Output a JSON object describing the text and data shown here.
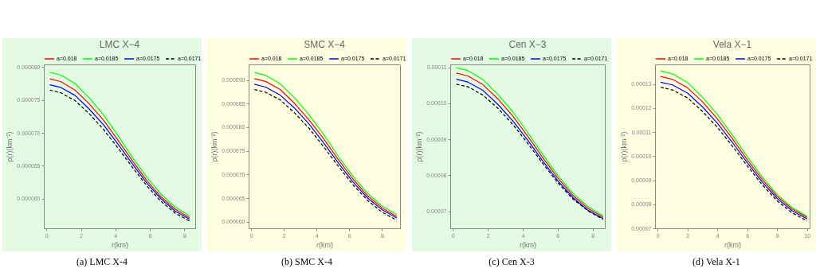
{
  "chart_data": [
    {
      "type": "line",
      "title": "LMC X−4",
      "xlabel": "r(km)",
      "ylabel": "ρ(r)(km⁻²)",
      "annotations": [
        "(a) LMC X-4"
      ],
      "legend": "top",
      "x": [
        0.2,
        0.83,
        1.66,
        2.49,
        3.32,
        4.15,
        4.98,
        5.81,
        6.64,
        7.47,
        8.3
      ],
      "xlim": [
        -0.15,
        8.63
      ],
      "xticks": [
        0,
        2,
        4,
        6,
        8
      ],
      "ylim": [
        5.55e-05,
        8.04e-05
      ],
      "yticks": [
        {
          "value": 6e-05,
          "label": "0.000060"
        },
        {
          "value": 6.5e-05,
          "label": "0.000065"
        },
        {
          "value": 7e-05,
          "label": "0.000070"
        },
        {
          "value": 7.5e-05,
          "label": "0.000075"
        },
        {
          "value": 8e-05,
          "label": "0.000080"
        }
      ],
      "series": [
        {
          "name": "a=0.018",
          "color": "#ff0000",
          "values": [
            7.82e-05,
            7.78e-05,
            7.65e-05,
            7.44e-05,
            7.19e-05,
            6.89e-05,
            6.58e-05,
            6.28e-05,
            6.03e-05,
            5.84e-05,
            5.71e-05
          ]
        },
        {
          "name": "a=0.0185",
          "color": "#00ff00",
          "values": [
            7.92e-05,
            7.88e-05,
            7.75e-05,
            7.53e-05,
            7.27e-05,
            6.96e-05,
            6.63e-05,
            6.33e-05,
            6.07e-05,
            5.87e-05,
            5.74e-05
          ]
        },
        {
          "name": "a=0.0175",
          "color": "#0000ff",
          "values": [
            7.73e-05,
            7.69e-05,
            7.57e-05,
            7.36e-05,
            7.12e-05,
            6.83e-05,
            6.53e-05,
            6.24e-05,
            6e-05,
            5.81e-05,
            5.69e-05
          ]
        },
        {
          "name": "a=0.0171",
          "color": "#000000",
          "line_style": "dashed",
          "values": [
            7.65e-05,
            7.61e-05,
            7.49e-05,
            7.29e-05,
            7.05e-05,
            6.77e-05,
            6.48e-05,
            6.2e-05,
            5.96e-05,
            5.78e-05,
            5.66e-05
          ]
        }
      ]
    },
    {
      "type": "line",
      "title": "SMC X−4",
      "xlabel": "r(km)",
      "ylabel": "ρ(r)(km⁻²)",
      "annotations": [
        "(b) SMC X-4"
      ],
      "legend": "top",
      "x": [
        0.2,
        0.89,
        1.78,
        2.67,
        3.56,
        4.45,
        5.34,
        6.23,
        7.12,
        8.01,
        8.9
      ],
      "xlim": [
        -0.15,
        9.1
      ],
      "xticks": [
        0,
        2,
        4,
        6,
        8
      ],
      "ylim": [
        5.86e-05,
        9.33e-05
      ],
      "yticks": [
        {
          "value": 6e-05,
          "label": "0.000060"
        },
        {
          "value": 6.5e-05,
          "label": "0.000065"
        },
        {
          "value": 7e-05,
          "label": "0.000070"
        },
        {
          "value": 7.5e-05,
          "label": "0.000075"
        },
        {
          "value": 8e-05,
          "label": "0.000080"
        },
        {
          "value": 8.5e-05,
          "label": "0.000085"
        },
        {
          "value": 9e-05,
          "label": "0.000090"
        }
      ],
      "series": [
        {
          "name": "a=0.018",
          "color": "#ff0000",
          "values": [
            9.03e-05,
            8.97e-05,
            8.8e-05,
            8.5e-05,
            8.15e-05,
            7.75e-05,
            7.31e-05,
            6.9e-05,
            6.55e-05,
            6.29e-05,
            6.11e-05
          ]
        },
        {
          "name": "a=0.0185",
          "color": "#00ff00",
          "values": [
            9.16e-05,
            9.1e-05,
            8.92e-05,
            8.62e-05,
            8.26e-05,
            7.84e-05,
            7.38e-05,
            6.96e-05,
            6.6e-05,
            6.33e-05,
            6.15e-05
          ]
        },
        {
          "name": "a=0.0175",
          "color": "#0000ff",
          "values": [
            8.91e-05,
            8.85e-05,
            8.68e-05,
            8.4e-05,
            8.06e-05,
            7.66e-05,
            7.24e-05,
            6.84e-05,
            6.5e-05,
            6.25e-05,
            6.08e-05
          ]
        },
        {
          "name": "a=0.0171",
          "color": "#000000",
          "line_style": "dashed",
          "values": [
            8.8e-05,
            8.74e-05,
            8.58e-05,
            8.3e-05,
            7.97e-05,
            7.58e-05,
            7.17e-05,
            6.78e-05,
            6.45e-05,
            6.2e-05,
            6.03e-05
          ]
        }
      ]
    },
    {
      "type": "line",
      "title": "Cen X−3",
      "xlabel": "r(km)",
      "ylabel": "ρ(r)(km⁻²)",
      "annotations": [
        "(c) Cen X-3"
      ],
      "legend": "top",
      "x": [
        0.2,
        0.86,
        1.72,
        2.58,
        3.44,
        4.3,
        5.16,
        6.02,
        6.88,
        7.74,
        8.6
      ],
      "xlim": [
        -0.15,
        8.7
      ],
      "xticks": [
        0,
        2,
        4,
        6,
        8
      ],
      "ylim": [
        6.53e-05,
        0.0001108
      ],
      "yticks": [
        {
          "value": 7e-05,
          "label": "0.00007"
        },
        {
          "value": 8e-05,
          "label": "0.00008"
        },
        {
          "value": 9e-05,
          "label": "0.00009"
        },
        {
          "value": 0.0001,
          "label": "0.00010"
        },
        {
          "value": 0.00011,
          "label": "0.00011"
        }
      ],
      "series": [
        {
          "name": "a=0.018",
          "color": "#ff0000",
          "values": [
            0.0001084,
            0.0001076,
            0.0001052,
            0.0001012,
            9.64e-05,
            9.08e-05,
            8.48e-05,
            7.92e-05,
            7.44e-05,
            7.08e-05,
            6.84e-05
          ]
        },
        {
          "name": "a=0.0185",
          "color": "#00ff00",
          "values": [
            0.0001099,
            0.0001091,
            0.0001066,
            0.0001025,
            9.76e-05,
            9.18e-05,
            8.57e-05,
            7.99e-05,
            7.5e-05,
            7.13e-05,
            6.88e-05
          ]
        },
        {
          "name": "a=0.0175",
          "color": "#0000ff",
          "values": [
            0.0001067,
            0.0001059,
            0.0001036,
            9.97e-05,
            9.51e-05,
            8.97e-05,
            8.39e-05,
            7.84e-05,
            7.38e-05,
            7.03e-05,
            6.8e-05
          ]
        },
        {
          "name": "a=0.0171",
          "color": "#000000",
          "line_style": "dashed",
          "values": [
            0.0001053,
            0.0001046,
            0.0001023,
            9.86e-05,
            9.41e-05,
            8.88e-05,
            8.32e-05,
            7.79e-05,
            7.34e-05,
            7.01e-05,
            6.78e-05
          ]
        }
      ]
    },
    {
      "type": "line",
      "title": "Vela X−1",
      "xlabel": "r(km)",
      "ylabel": "ρ(r)(km⁻²)",
      "annotations": [
        "(d) Vela X-1"
      ],
      "legend": "top",
      "x": [
        0.2,
        1,
        2,
        3,
        4,
        5,
        6,
        7,
        8,
        9,
        10
      ],
      "xlim": [
        -0.17,
        10.17
      ],
      "xticks": [
        0,
        2,
        4,
        6,
        8,
        10
      ],
      "ylim": [
        7e-05,
        0.0001381
      ],
      "yticks": [
        {
          "value": 7e-05,
          "label": "0.00007"
        },
        {
          "value": 8e-05,
          "label": "0.00008"
        },
        {
          "value": 9e-05,
          "label": "0.00009"
        },
        {
          "value": 0.0001,
          "label": "0.00010"
        },
        {
          "value": 0.00011,
          "label": "0.00011"
        },
        {
          "value": 0.00012,
          "label": "0.00012"
        },
        {
          "value": 0.00013,
          "label": "0.00013"
        }
      ],
      "series": [
        {
          "name": "a=0.018",
          "color": "#ff0000",
          "values": [
            0.0001331,
            0.0001319,
            0.0001284,
            0.0001226,
            0.0001155,
            0.0001073,
            9.85e-05,
            9.03e-05,
            8.33e-05,
            7.8e-05,
            7.45e-05
          ]
        },
        {
          "name": "a=0.0185",
          "color": "#00ff00",
          "values": [
            0.0001354,
            0.0001342,
            0.0001306,
            0.0001245,
            0.0001173,
            0.0001088,
            9.98e-05,
            9.13e-05,
            8.41e-05,
            7.86e-05,
            7.5e-05
          ]
        },
        {
          "name": "a=0.0175",
          "color": "#0000ff",
          "values": [
            0.0001307,
            0.0001296,
            0.0001262,
            0.0001205,
            0.0001137,
            0.0001057,
            9.72e-05,
            8.92e-05,
            8.24e-05,
            7.73e-05,
            7.39e-05
          ]
        },
        {
          "name": "a=0.0171",
          "color": "#000000",
          "line_style": "dashed",
          "values": [
            0.0001286,
            0.0001275,
            0.0001242,
            0.0001186,
            0.000112,
            0.0001042,
            9.59e-05,
            8.81e-05,
            8.14e-05,
            7.64e-05,
            7.31e-05
          ]
        }
      ]
    }
  ]
}
